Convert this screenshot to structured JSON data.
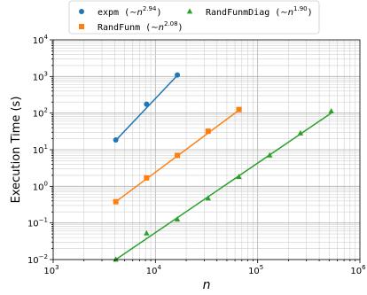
{
  "chart_data": {
    "type": "scatter",
    "xscale": "log",
    "yscale": "log",
    "xlim": [
      1000,
      1000000
    ],
    "ylim": [
      0.01,
      10000
    ],
    "xlabel": "n",
    "ylabel": "Execution Time (s)",
    "grid": true,
    "legend_position": "top",
    "x_ticks": [
      {
        "base": "10",
        "exp": "3"
      },
      {
        "base": "10",
        "exp": "4"
      },
      {
        "base": "10",
        "exp": "5"
      },
      {
        "base": "10",
        "exp": "6"
      }
    ],
    "y_ticks": [
      {
        "base": "10",
        "exp": "−2"
      },
      {
        "base": "10",
        "exp": "−1"
      },
      {
        "base": "10",
        "exp": "0"
      },
      {
        "base": "10",
        "exp": "1"
      },
      {
        "base": "10",
        "exp": "2"
      },
      {
        "base": "10",
        "exp": "3"
      },
      {
        "base": "10",
        "exp": "4"
      }
    ],
    "series": [
      {
        "name": "expm",
        "fit_label": "n",
        "fit_exponent": "2.94",
        "color": "#1f77b4",
        "marker": "circle",
        "x": [
          4096,
          8192,
          16384
        ],
        "y": [
          18.5,
          175,
          1100
        ],
        "fit": {
          "x": [
            4096,
            16384
          ],
          "y": [
            18.0,
            1070
          ]
        }
      },
      {
        "name": "RandFunm",
        "fit_label": "n",
        "fit_exponent": "2.08",
        "color": "#ff7f0e",
        "marker": "square",
        "x": [
          4096,
          8192,
          16384,
          32768,
          65536
        ],
        "y": [
          0.38,
          1.7,
          7.0,
          32,
          125
        ],
        "fit": {
          "x": [
            4096,
            65536
          ],
          "y": [
            0.38,
            120
          ]
        }
      },
      {
        "name": "RandFunmDiag",
        "fit_label": "n",
        "fit_exponent": "1.90",
        "color": "#2ca02c",
        "marker": "triangle",
        "x": [
          4096,
          8192,
          16384,
          32768,
          65536,
          131072,
          262144,
          524288
        ],
        "y": [
          0.01,
          0.052,
          0.125,
          0.47,
          1.8,
          7.0,
          28,
          112
        ],
        "fit": {
          "x": [
            4096,
            524288
          ],
          "y": [
            0.01,
            100
          ]
        }
      }
    ]
  }
}
